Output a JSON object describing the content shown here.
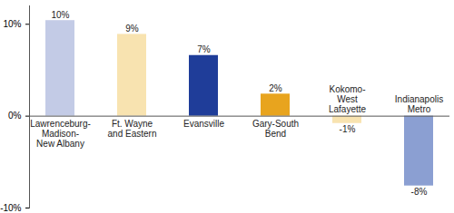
{
  "chart_data": {
    "type": "bar",
    "categories": [
      "Lawrenceburg-\nMadison-\nNew Albany",
      "Ft. Wayne\nand Eastern",
      "Evansville",
      "Gary-South\nBend",
      "Kokomo-\nWest\nLafayette",
      "Indianapolis\nMetro"
    ],
    "values": [
      10.4,
      8.9,
      6.6,
      2.4,
      -0.8,
      -7.6
    ],
    "value_labels": [
      "10%",
      "9%",
      "7%",
      "2%",
      "-1%",
      "-8%"
    ],
    "colors": [
      "#c3cbe6",
      "#f8e3b0",
      "#1f3d99",
      "#e8a41e",
      "#f8e3b0",
      "#8b9fd2"
    ],
    "ylim": [
      -10,
      12
    ],
    "yticks": [
      {
        "value": -10,
        "label": "-10%"
      },
      {
        "value": 0,
        "label": "0%"
      },
      {
        "value": 10,
        "label": "10%"
      }
    ],
    "data_labels": true,
    "grid": false
  }
}
